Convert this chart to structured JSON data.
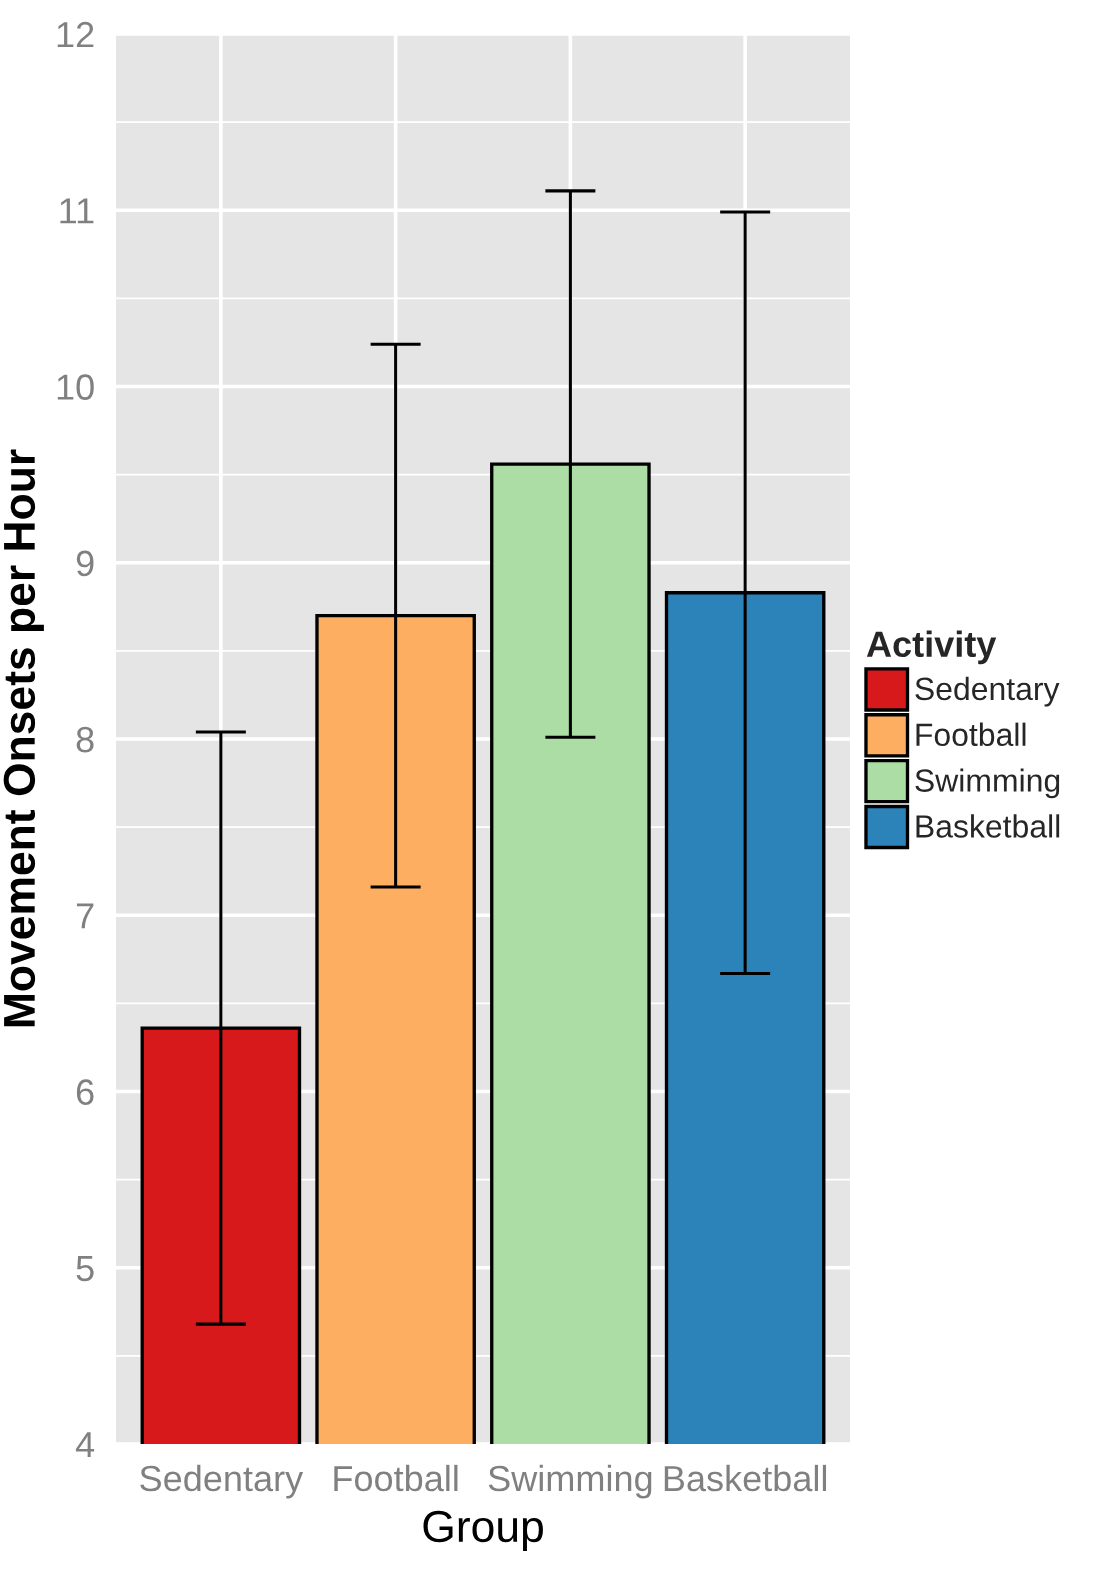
{
  "chart_data": {
    "type": "bar",
    "xlabel": "Group",
    "ylabel": "Movement Onsets per Hour",
    "legend_title": "Activity",
    "categories": [
      "Sedentary",
      "Football",
      "Swimming",
      "Basketball"
    ],
    "series": [
      {
        "name": "Sedentary",
        "color": "#d7191c",
        "values": [
          6.36,
          null,
          null,
          null
        ],
        "errors": [
          1.68,
          null,
          null,
          null
        ]
      },
      {
        "name": "Football",
        "color": "#fdae61",
        "values": [
          null,
          8.7,
          null,
          null
        ],
        "errors": [
          null,
          1.54,
          null,
          null
        ]
      },
      {
        "name": "Swimming",
        "color": "#abdda4",
        "values": [
          null,
          null,
          9.56,
          null
        ],
        "errors": [
          null,
          null,
          1.55,
          null
        ]
      },
      {
        "name": "Basketball",
        "color": "#2b83ba",
        "values": [
          null,
          null,
          null,
          8.83
        ],
        "errors": [
          null,
          null,
          null,
          2.16
        ]
      }
    ],
    "ylim": [
      4,
      12
    ],
    "yticks": [
      4,
      5,
      6,
      7,
      8,
      9,
      10,
      11,
      12
    ],
    "grid": true,
    "legend": "right"
  }
}
